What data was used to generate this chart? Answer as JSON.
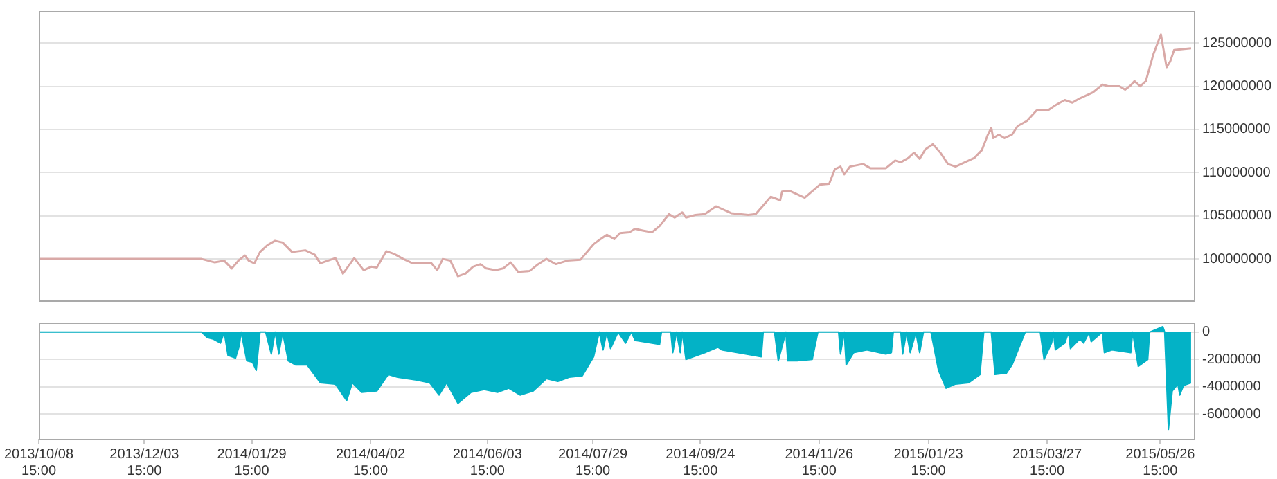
{
  "chart_data": [
    {
      "type": "line",
      "xlim": [
        "2013-10-08T15:00",
        "2015-06-13T12:00"
      ],
      "ylim": [
        95200000,
        128700000
      ],
      "yticks": [
        100000000,
        105000000,
        110000000,
        115000000,
        120000000,
        125000000
      ],
      "grid": "y",
      "tick_labels": "y",
      "series": [
        {
          "color": "#d9a9a7",
          "x": [
            "2013-10-08T15:00",
            "2014-01-03",
            "2014-01-10",
            "2014-01-15",
            "2014-01-19",
            "2014-01-23",
            "2014-01-26",
            "2014-01-28",
            "2014-01-31",
            "2014-02-03",
            "2014-02-07",
            "2014-02-11",
            "2014-02-15",
            "2014-02-20",
            "2014-02-27",
            "2014-03-04",
            "2014-03-07",
            "2014-03-15",
            "2014-03-19",
            "2014-03-25",
            "2014-03-30",
            "2014-04-03",
            "2014-04-06",
            "2014-04-11",
            "2014-04-15",
            "2014-04-20",
            "2014-04-25",
            "2014-05-05",
            "2014-05-08",
            "2014-05-11",
            "2014-05-15",
            "2014-05-19",
            "2014-05-23",
            "2014-05-27",
            "2014-05-31",
            "2014-06-03",
            "2014-06-08",
            "2014-06-12",
            "2014-06-16",
            "2014-06-20",
            "2014-06-26",
            "2014-06-30",
            "2014-07-05",
            "2014-07-10",
            "2014-07-16",
            "2014-07-23",
            "2014-07-30",
            "2014-08-02",
            "2014-08-06",
            "2014-08-10",
            "2014-08-13",
            "2014-08-18",
            "2014-08-21",
            "2014-08-25",
            "2014-08-30",
            "2014-09-03",
            "2014-09-08",
            "2014-09-11",
            "2014-09-15",
            "2014-09-17",
            "2014-09-22",
            "2014-09-27",
            "2014-10-03",
            "2014-10-11",
            "2014-10-20",
            "2014-10-24",
            "2014-11-01",
            "2014-11-06",
            "2014-11-07",
            "2014-11-11",
            "2014-11-19",
            "2014-11-27",
            "2014-12-02",
            "2014-12-05",
            "2014-12-08",
            "2014-12-10",
            "2014-12-13",
            "2014-12-20",
            "2014-12-24",
            "2015-01-01",
            "2015-01-06",
            "2015-01-09",
            "2015-01-13",
            "2015-01-16",
            "2015-01-19",
            "2015-01-22",
            "2015-01-26",
            "2015-01-30",
            "2015-02-03",
            "2015-02-07",
            "2015-02-17",
            "2015-02-21",
            "2015-02-24",
            "2015-02-26",
            "2015-02-27",
            "2015-03-02",
            "2015-03-05",
            "2015-03-09",
            "2015-03-12",
            "2015-03-17",
            "2015-03-22",
            "2015-03-28",
            "2015-04-01",
            "2015-04-06",
            "2015-04-10",
            "2015-04-14",
            "2015-04-21",
            "2015-04-26",
            "2015-04-29",
            "2015-05-05",
            "2015-05-08",
            "2015-05-11",
            "2015-05-13",
            "2015-05-16",
            "2015-05-19",
            "2015-05-23",
            "2015-05-27",
            "2015-05-30",
            "2015-06-01",
            "2015-06-03",
            "2015-06-12"
          ],
          "values": [
            100000000,
            100000000,
            99600000,
            99800000,
            98900000,
            99900000,
            100400000,
            99800000,
            99500000,
            100800000,
            101600000,
            102100000,
            101900000,
            100800000,
            101000000,
            100500000,
            99500000,
            100100000,
            98300000,
            100100000,
            98700000,
            99100000,
            99000000,
            100900000,
            100600000,
            100000000,
            99500000,
            99500000,
            98700000,
            100000000,
            99800000,
            98000000,
            98300000,
            99100000,
            99400000,
            98900000,
            98700000,
            98900000,
            99600000,
            98500000,
            98600000,
            99300000,
            100000000,
            99400000,
            99800000,
            99900000,
            101700000,
            102200000,
            102800000,
            102300000,
            103000000,
            103100000,
            103500000,
            103300000,
            103100000,
            103800000,
            105200000,
            104800000,
            105400000,
            104800000,
            105100000,
            105200000,
            106100000,
            105300000,
            105100000,
            105200000,
            107200000,
            106800000,
            107800000,
            107900000,
            107100000,
            108600000,
            108700000,
            110400000,
            110700000,
            109800000,
            110700000,
            111000000,
            110500000,
            110500000,
            111400000,
            111200000,
            111700000,
            112300000,
            111600000,
            112700000,
            113300000,
            112300000,
            111000000,
            110700000,
            111700000,
            112600000,
            114300000,
            115200000,
            114000000,
            114400000,
            114000000,
            114400000,
            115400000,
            116000000,
            117200000,
            117200000,
            117800000,
            118400000,
            118100000,
            118600000,
            119300000,
            120200000,
            120000000,
            120000000,
            119600000,
            120100000,
            120600000,
            120000000,
            120600000,
            123700000,
            126000000,
            122200000,
            122900000,
            124200000,
            124400000
          ]
        }
      ]
    },
    {
      "type": "area",
      "xlim": [
        "2013-10-08T15:00",
        "2015-06-13T12:00"
      ],
      "xticks": [
        {
          "value": "2013-10-08T15:00",
          "label": "2013/10/08 15:00"
        },
        {
          "value": "2013-12-03T15:00",
          "label": "2013/12/03 15:00"
        },
        {
          "value": "2014-01-29T15:00",
          "label": "2014/01/29 15:00"
        },
        {
          "value": "2014-04-02T15:00",
          "label": "2014/04/02 15:00"
        },
        {
          "value": "2014-06-03T15:00",
          "label": "2014/06/03 15:00"
        },
        {
          "value": "2014-07-29T15:00",
          "label": "2014/07/29 15:00"
        },
        {
          "value": "2014-09-24T15:00",
          "label": "2014/09/24 15:00"
        },
        {
          "value": "2014-11-26T15:00",
          "label": "2014/11/26 15:00"
        },
        {
          "value": "2015-01-23T15:00",
          "label": "2015/01/23 15:00"
        },
        {
          "value": "2015-03-27T15:00",
          "label": "2015/03/27 15:00"
        },
        {
          "value": "2015-05-26T15:00",
          "label": "2015/05/26 15:00"
        }
      ],
      "ylim": [
        -7800000,
        700000
      ],
      "yticks": [
        0,
        -2000000,
        -4000000,
        -6000000
      ],
      "grid": "y",
      "series": [
        {
          "color": "#03b2c6",
          "x": [
            "2013-10-08T15:00",
            "2014-01-03",
            "2014-01-06",
            "2014-01-09",
            "2014-01-13",
            "2014-01-15",
            "2014-01-17",
            "2014-01-21",
            "2014-01-23",
            "2014-01-24",
            "2014-01-27",
            "2014-01-30",
            "2014-02-01",
            "2014-02-03",
            "2014-02-06",
            "2014-02-09",
            "2014-02-11",
            "2014-02-13",
            "2014-02-15",
            "2014-02-18",
            "2014-02-22",
            "2014-02-28",
            "2014-03-07",
            "2014-03-15",
            "2014-03-21",
            "2014-03-24",
            "2014-03-29",
            "2014-04-06",
            "2014-04-12",
            "2014-04-17",
            "2014-04-27",
            "2014-05-04",
            "2014-05-09",
            "2014-05-13",
            "2014-05-19",
            "2014-05-26",
            "2014-06-02",
            "2014-06-09",
            "2014-06-15",
            "2014-06-21",
            "2014-06-28",
            "2014-07-05",
            "2014-07-11",
            "2014-07-17",
            "2014-07-24",
            "2014-07-30",
            "2014-08-02",
            "2014-08-04",
            "2014-08-06",
            "2014-08-08",
            "2014-08-12",
            "2014-08-16",
            "2014-08-19",
            "2014-08-21",
            "2014-09-03",
            "2014-09-04",
            "2014-09-09",
            "2014-09-10",
            "2014-09-12",
            "2014-09-14",
            "2014-09-15",
            "2014-09-17",
            "2014-09-27",
            "2014-10-04",
            "2014-10-06",
            "2014-10-23",
            "2014-10-27",
            "2014-10-28",
            "2014-11-03",
            "2014-11-05",
            "2014-11-09",
            "2014-11-10",
            "2014-11-15",
            "2014-11-23",
            "2014-11-26",
            "2014-12-07",
            "2014-12-08",
            "2014-12-10",
            "2014-12-11",
            "2014-12-15",
            "2014-12-22",
            "2015-01-01",
            "2015-01-04",
            "2015-01-05",
            "2015-01-09",
            "2015-01-10",
            "2015-01-12",
            "2015-01-14",
            "2015-01-17",
            "2015-01-19",
            "2015-01-21",
            "2015-01-25",
            "2015-01-29",
            "2015-02-02",
            "2015-02-07",
            "2015-02-14",
            "2015-02-20",
            "2015-02-22",
            "2015-02-26",
            "2015-02-28",
            "2015-03-06",
            "2015-03-09",
            "2015-03-16",
            "2015-03-24",
            "2015-03-26",
            "2015-03-30",
            "2015-03-31",
            "2015-04-01",
            "2015-04-06",
            "2015-04-08",
            "2015-04-09",
            "2015-04-14",
            "2015-04-16",
            "2015-04-19",
            "2015-04-20",
            "2015-04-26",
            "2015-04-27",
            "2015-05-01",
            "2015-05-11",
            "2015-05-12",
            "2015-05-15",
            "2015-05-20",
            "2015-05-21",
            "2015-05-28",
            "2015-05-29",
            "2015-05-31",
            "2015-06-02",
            "2015-06-05",
            "2015-06-06",
            "2015-06-08",
            "2015-06-12"
          ],
          "values": [
            0,
            0,
            -400000,
            -500000,
            -800000,
            0,
            -1700000,
            -1900000,
            -1000000,
            0,
            -2100000,
            -2200000,
            -2800000,
            0,
            0,
            -1600000,
            0,
            -1600000,
            0,
            -2100000,
            -2400000,
            -2400000,
            -3700000,
            -3800000,
            -5000000,
            -3700000,
            -4400000,
            -4300000,
            -3100000,
            -3300000,
            -3500000,
            -3700000,
            -4600000,
            -3700000,
            -5200000,
            -4400000,
            -4200000,
            -4400000,
            -4100000,
            -4600000,
            -4300000,
            -3400000,
            -3600000,
            -3300000,
            -3200000,
            -1800000,
            0,
            -1300000,
            0,
            -1200000,
            0,
            -800000,
            0,
            -600000,
            -900000,
            0,
            0,
            -1500000,
            0,
            -1500000,
            0,
            -2000000,
            -1500000,
            -1100000,
            -1300000,
            -1700000,
            -1800000,
            0,
            0,
            -2100000,
            0,
            -2100000,
            -2100000,
            -2000000,
            0,
            0,
            -1600000,
            0,
            -2400000,
            -1500000,
            -1300000,
            -1600000,
            -1500000,
            0,
            0,
            -1600000,
            0,
            -1500000,
            0,
            -1500000,
            0,
            0,
            -2800000,
            -4100000,
            -3800000,
            -3700000,
            -3100000,
            0,
            0,
            -3100000,
            -3000000,
            -2400000,
            0,
            0,
            -2000000,
            -800000,
            0,
            -1300000,
            -800000,
            0,
            -1200000,
            -500000,
            -800000,
            0,
            -700000,
            0,
            -1500000,
            -1300000,
            -1500000,
            0,
            -2500000,
            -2000000,
            0,
            400000,
            0,
            -7100000,
            -4300000,
            -3800000,
            -4600000,
            -3900000,
            -3700000
          ]
        }
      ]
    }
  ]
}
